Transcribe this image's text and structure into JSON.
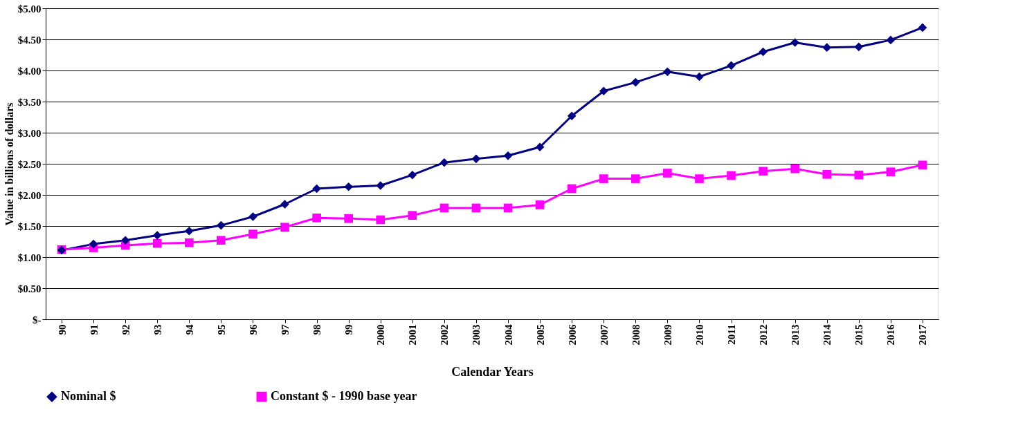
{
  "chart_data": {
    "type": "line",
    "xlabel": "Calendar Years",
    "ylabel": "Value in billions of dollars",
    "categories": [
      "90",
      "91",
      "92",
      "93",
      "94",
      "95",
      "96",
      "97",
      "98",
      "99",
      "2000",
      "2001",
      "2002",
      "2003",
      "2004",
      "2005",
      "2006",
      "2007",
      "2008",
      "2009",
      "2010",
      "2011",
      "2012",
      "2013",
      "2014",
      "2015",
      "2016",
      "2017"
    ],
    "series": [
      {
        "name": "Nominal $",
        "color": "#000080",
        "marker": "diamond",
        "values": [
          1.11,
          1.21,
          1.27,
          1.35,
          1.42,
          1.51,
          1.65,
          1.85,
          2.1,
          2.13,
          2.15,
          2.32,
          2.52,
          2.58,
          2.63,
          2.77,
          3.27,
          3.67,
          3.81,
          3.98,
          3.9,
          4.08,
          4.3,
          4.45,
          4.37,
          4.38,
          4.49,
          4.69
        ]
      },
      {
        "name": "Constant $ - 1990 base year",
        "color": "#ff00ff",
        "marker": "square",
        "values": [
          1.12,
          1.15,
          1.19,
          1.22,
          1.23,
          1.27,
          1.37,
          1.48,
          1.63,
          1.62,
          1.6,
          1.67,
          1.79,
          1.79,
          1.79,
          1.84,
          2.1,
          2.26,
          2.26,
          2.35,
          2.26,
          2.31,
          2.38,
          2.42,
          2.33,
          2.32,
          2.37,
          2.48
        ]
      }
    ],
    "ylim": [
      0,
      5
    ],
    "yticks": [
      {
        "value": 0,
        "label": "$-"
      },
      {
        "value": 0.5,
        "label": "$0.50"
      },
      {
        "value": 1,
        "label": "$1.00"
      },
      {
        "value": 1.5,
        "label": "$1.50"
      },
      {
        "value": 2,
        "label": "$2.00"
      },
      {
        "value": 2.5,
        "label": "$2.50"
      },
      {
        "value": 3,
        "label": "$3.00"
      },
      {
        "value": 3.5,
        "label": "$3.50"
      },
      {
        "value": 4,
        "label": "$4.00"
      },
      {
        "value": 4.5,
        "label": "$4.50"
      },
      {
        "value": 5,
        "label": "$5.00"
      }
    ],
    "grid": "y",
    "legend": "bottom",
    "line_style": "solid"
  }
}
